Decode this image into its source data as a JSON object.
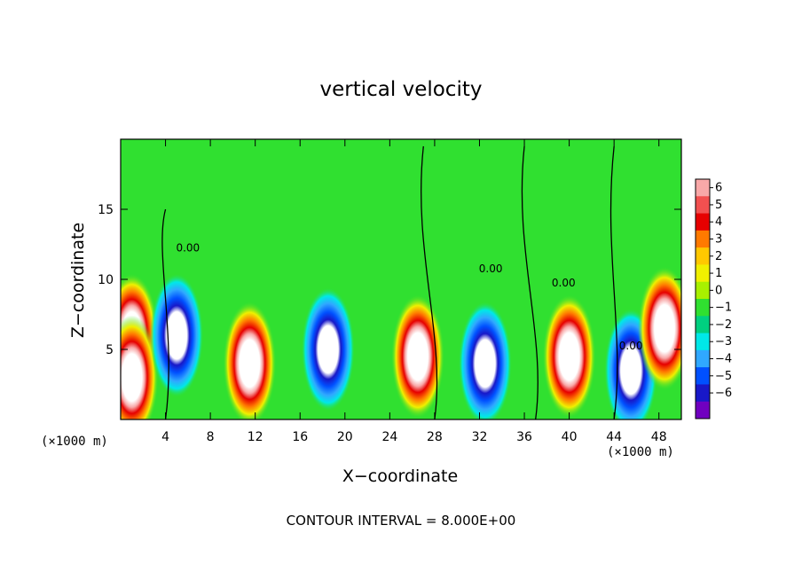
{
  "chart_data": {
    "type": "heatmap",
    "title": "vertical velocity",
    "xlabel": "X−coordinate",
    "ylabel": "Z−coordinate",
    "x_unit_left": "(×1000 m)",
    "x_unit_right": "(×1000 m)",
    "xlim": [
      0,
      50
    ],
    "ylim": [
      0,
      20
    ],
    "x_ticks": [
      4,
      8,
      12,
      16,
      20,
      24,
      28,
      32,
      36,
      40,
      44,
      48
    ],
    "y_ticks": [
      5,
      10,
      15
    ],
    "footer": "CONTOUR INTERVAL = 8.000E+00",
    "contour_label": "0.00",
    "colorbar": {
      "levels": [
        "6",
        "5",
        "4",
        "3",
        "2",
        "1",
        "0",
        "−1",
        "−2",
        "−3",
        "−4",
        "−5",
        "−6"
      ],
      "colors": [
        "#f8a8a8",
        "#f25050",
        "#e60000",
        "#ff7a00",
        "#ffc800",
        "#f0f000",
        "#a8f000",
        "#30e030",
        "#00d080",
        "#00e8e8",
        "#30a8ff",
        "#0050ff",
        "#1818c8",
        "#7000c0"
      ]
    },
    "cells": [
      {
        "x": 1,
        "z": 6,
        "w": 1
      },
      {
        "x": 1,
        "z": 3,
        "w": 1
      },
      {
        "x": 5,
        "z": 6,
        "w": -1
      },
      {
        "x": 11.5,
        "z": 4,
        "w": 1
      },
      {
        "x": 18.5,
        "z": 5,
        "w": -1
      },
      {
        "x": 26.5,
        "z": 4.5,
        "w": 1
      },
      {
        "x": 32.5,
        "z": 4,
        "w": -1
      },
      {
        "x": 40,
        "z": 4.5,
        "w": 1
      },
      {
        "x": 45.5,
        "z": 3.5,
        "w": -1
      },
      {
        "x": 48.5,
        "z": 6.5,
        "w": 1
      }
    ]
  }
}
